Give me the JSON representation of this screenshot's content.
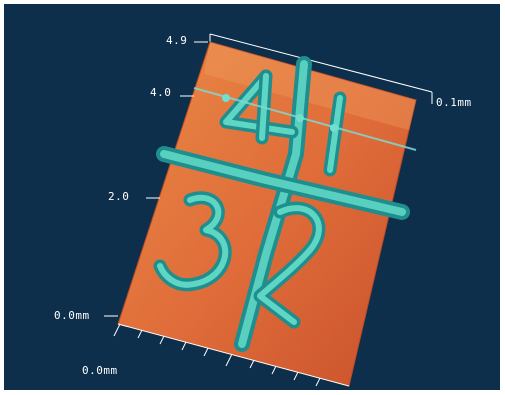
{
  "viewer": {
    "background": "#0d2f4b",
    "surface_color": "#e06d3a",
    "highlight_color": "#3ec9b7"
  },
  "axis_labels": {
    "y_top": "4.9",
    "y_upper": "4.0",
    "y_mid": "2.0",
    "y_origin": "0.0mm",
    "x_origin": "0.0mm",
    "z_max": "0.1mm"
  }
}
